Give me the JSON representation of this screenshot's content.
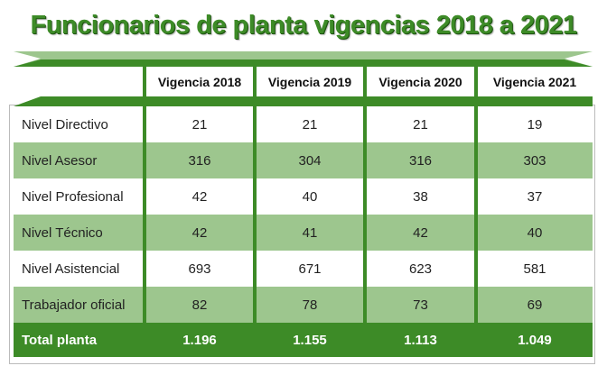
{
  "title": "Funcionarios de planta vigencias 2018 a 2021",
  "colors": {
    "dark_green": "#3d8b27",
    "light_green": "#9dc68e"
  },
  "table": {
    "headers": [
      "",
      "Vigencia 2018",
      "Vigencia 2019",
      "Vigencia 2020",
      "Vigencia 2021"
    ],
    "rows": [
      {
        "label": "Nivel Directivo",
        "values": [
          "21",
          "21",
          "21",
          "19"
        ]
      },
      {
        "label": "Nivel Asesor",
        "values": [
          "316",
          "304",
          "316",
          "303"
        ]
      },
      {
        "label": "Nivel Profesional",
        "values": [
          "42",
          "40",
          "38",
          "37"
        ]
      },
      {
        "label": "Nivel Técnico",
        "values": [
          "42",
          "41",
          "42",
          "40"
        ]
      },
      {
        "label": "Nivel Asistencial",
        "values": [
          "693",
          "671",
          "623",
          "581"
        ]
      },
      {
        "label": "Trabajador oficial",
        "values": [
          "82",
          "78",
          "73",
          "69"
        ]
      }
    ],
    "total": {
      "label": "Total planta",
      "values": [
        "1.196",
        "1.155",
        "1.113",
        "1.049"
      ]
    }
  }
}
